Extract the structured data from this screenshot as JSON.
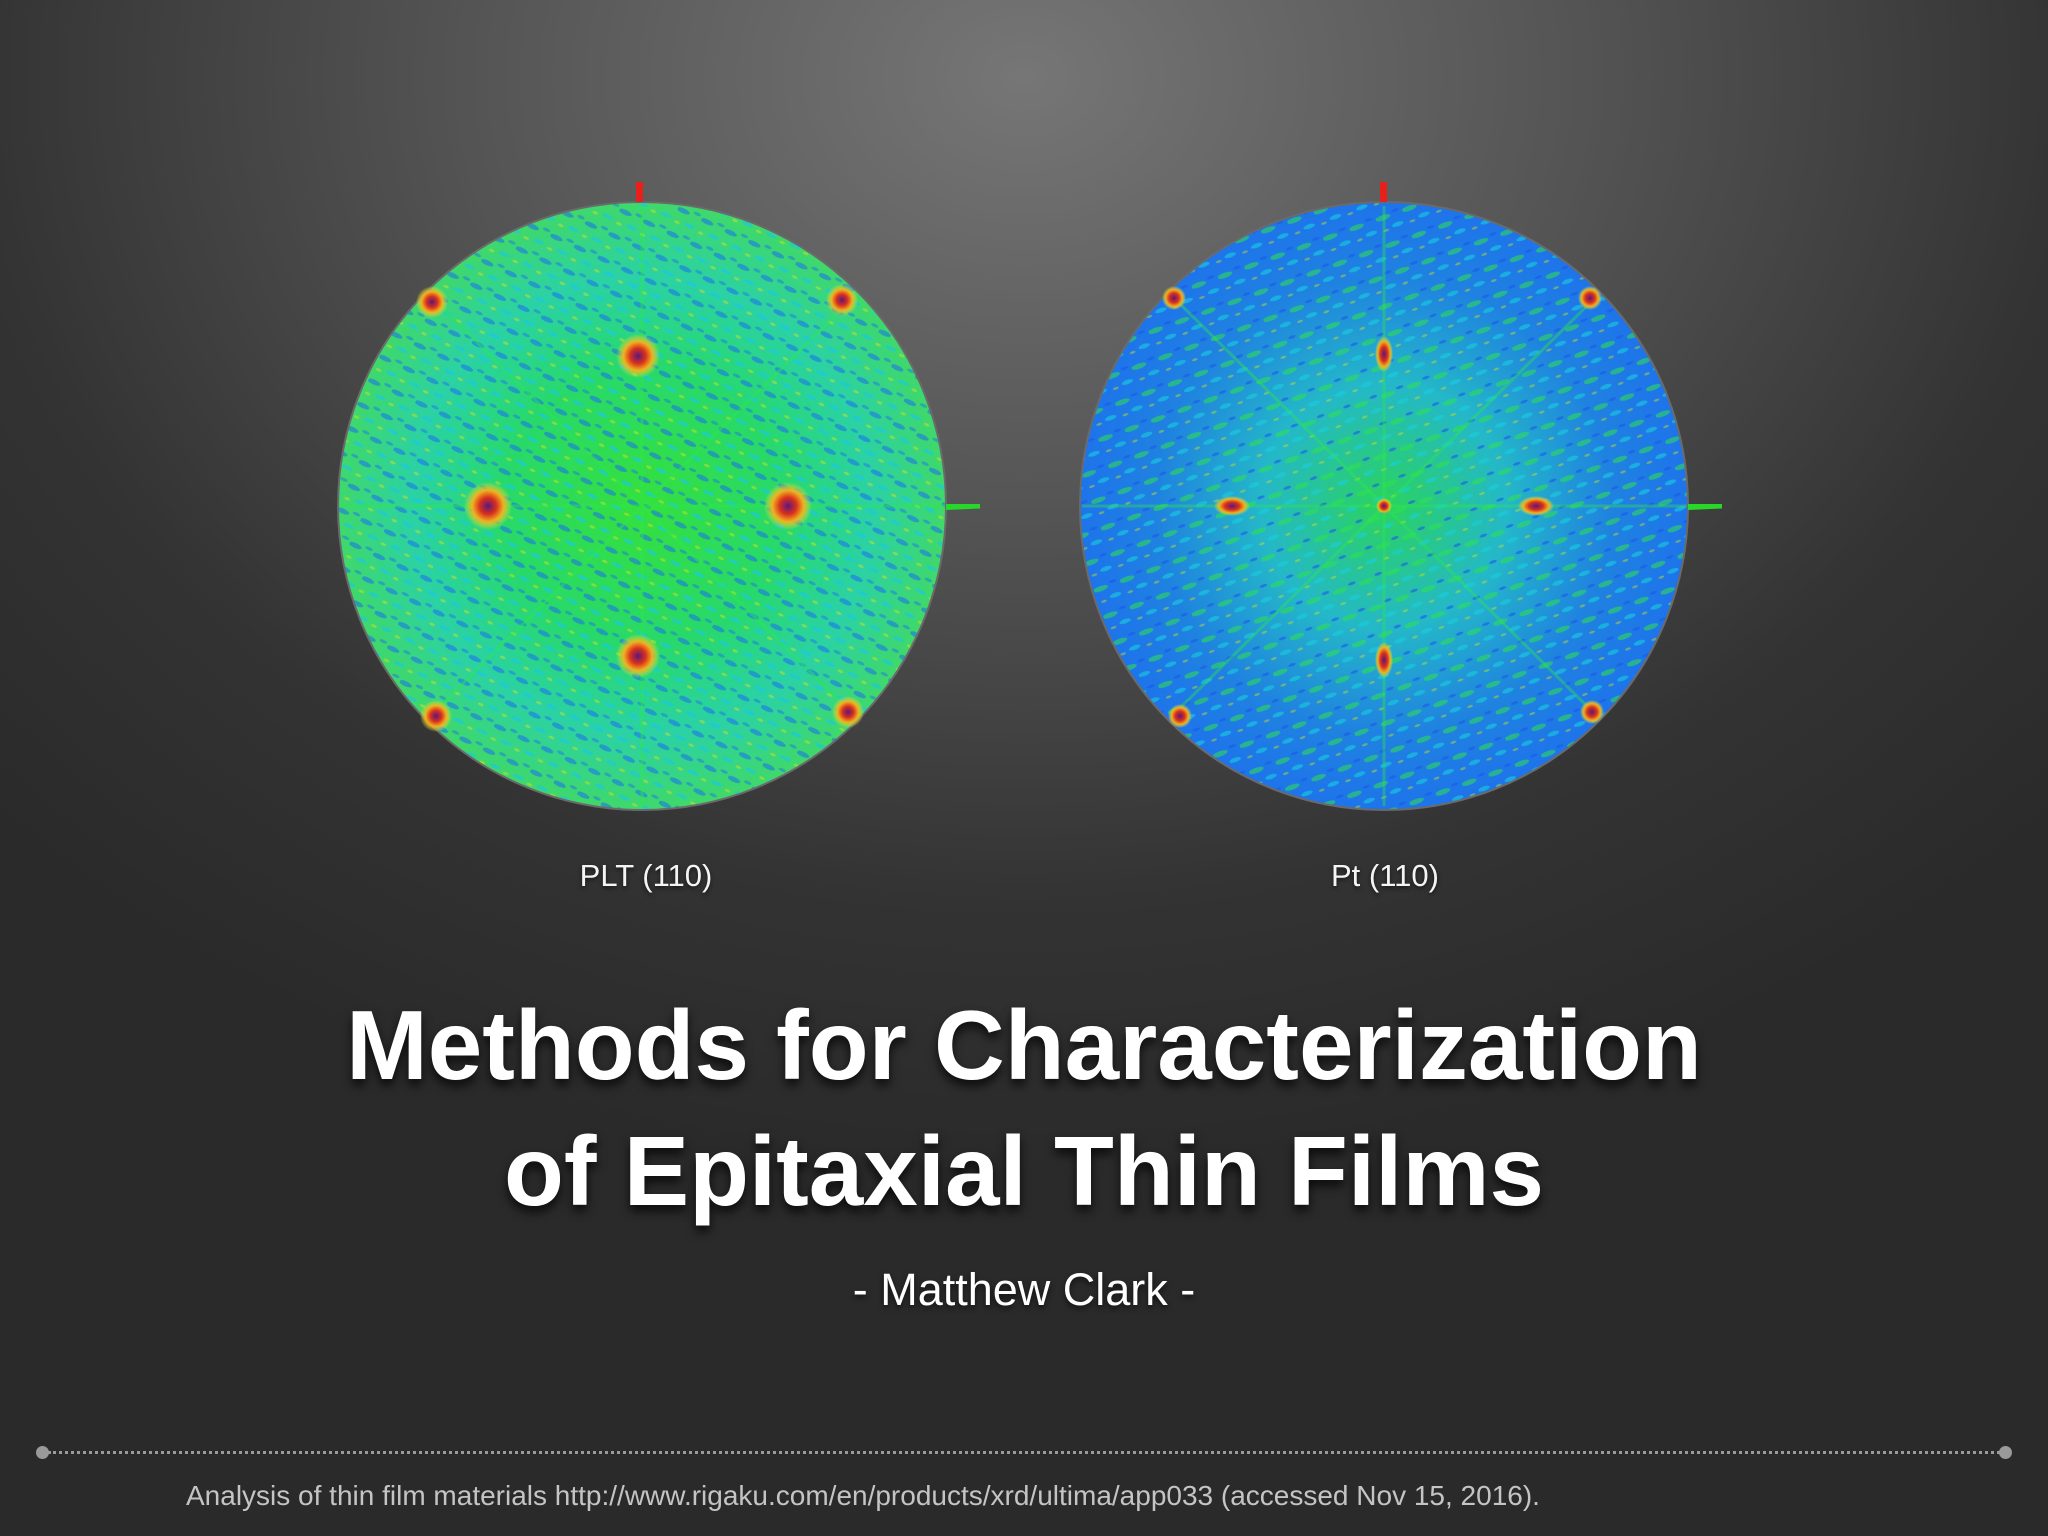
{
  "figures": [
    {
      "label": "PLT (110)",
      "style": "green-dominant",
      "accent_colors": [
        "#1e6cf0",
        "#19d4e8",
        "#22e03a",
        "#e6e020",
        "#e33a1a",
        "#6a1a8a"
      ]
    },
    {
      "label": "Pt (110)",
      "style": "blue-dominant",
      "accent_colors": [
        "#1e6cf0",
        "#19d4e8",
        "#22e03a",
        "#e6e020",
        "#e33a1a",
        "#6a1a8a"
      ]
    }
  ],
  "title": {
    "line1": "Methods for Characterization",
    "line2": "of Epitaxial Thin Films"
  },
  "author": "- Matthew Clark -",
  "citation": "Analysis of thin film materials http://www.rigaku.com/en/products/xrd/ultima/app033 (accessed Nov 15, 2016).",
  "colors": {
    "background_center": "#767676",
    "background_edge": "#2a2a2a",
    "divider": "#9a9a9a",
    "citation_text": "#c4c4c4"
  }
}
